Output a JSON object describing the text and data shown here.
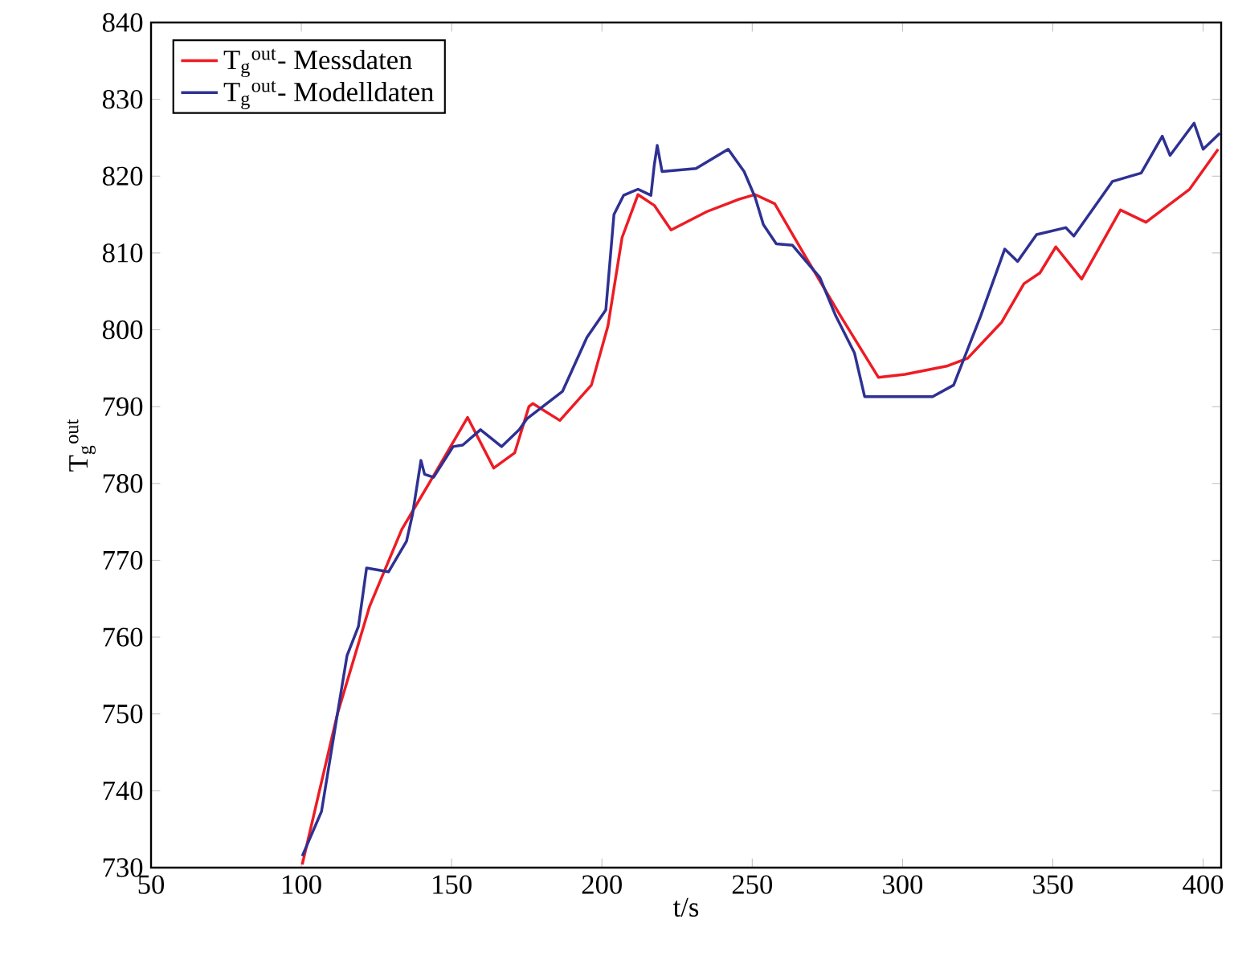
{
  "chart_data": {
    "type": "line",
    "xlabel": "t/s",
    "ylabel": "T$_{g}$$^{out}$",
    "xlim": [
      50,
      406
    ],
    "ylim": [
      730,
      840
    ],
    "xticks": [
      50,
      100,
      150,
      200,
      250,
      300,
      350,
      400
    ],
    "yticks": [
      730,
      740,
      750,
      760,
      770,
      780,
      790,
      800,
      810,
      820,
      830,
      840
    ],
    "legend": "top left",
    "grid": false,
    "marker": "none",
    "line_style": "solid",
    "series": [
      {
        "name": "T$_{g}$$^{out}$- Messdaten",
        "color": "#ed1c24",
        "x": [
          100.3,
          112,
          122.7,
          133.4,
          144,
          155.3,
          164,
          171,
          175.7,
          177,
          186,
          196.5,
          202,
          206.7,
          212,
          217.4,
          223,
          235,
          245.7,
          251,
          257.5,
          267,
          279.4,
          292,
          300.8,
          315,
          321.7,
          333,
          340.4,
          345.7,
          351,
          359.6,
          372.5,
          381,
          395.5,
          405
        ],
        "values": [
          730.4,
          750,
          764,
          774,
          781,
          788.6,
          782,
          784,
          790,
          790.4,
          788.2,
          792.8,
          800.5,
          812,
          817.6,
          816.2,
          813,
          815.4,
          817,
          817.6,
          816.4,
          810,
          801.8,
          793.8,
          794.2,
          795.3,
          796.3,
          801,
          806,
          807.4,
          810.8,
          806.6,
          815.6,
          814,
          818.3,
          823.5
        ]
      },
      {
        "name": "T$_{g}$$^{out}$- Modelldaten",
        "color": "#2e3192",
        "x": [
          100.3,
          106.7,
          112,
          115.2,
          119,
          121.7,
          129,
          135,
          137,
          139.8,
          141,
          144,
          150.5,
          153.7,
          159.6,
          166.6,
          172.5,
          175,
          186.9,
          195,
          201.3,
          204,
          207.2,
          212,
          216.3,
          217.4,
          218.4,
          220,
          231.3,
          242,
          247.3,
          251,
          253.7,
          258,
          263.4,
          272.5,
          277.8,
          284,
          287.4,
          292,
          310,
          317,
          326,
          334,
          338.3,
          344.6,
          354.3,
          357,
          369.8,
          379.4,
          386.4,
          389,
          397,
          400,
          405.6
        ],
        "values": [
          731.5,
          737.3,
          750,
          757.6,
          761.4,
          769,
          768.5,
          772.5,
          776,
          783,
          781.2,
          780.8,
          784.8,
          785,
          787,
          784.8,
          787,
          788.4,
          792,
          799,
          802.6,
          815,
          817.5,
          818.3,
          817.5,
          821.4,
          824,
          820.6,
          821,
          823.5,
          820.6,
          817.2,
          813.7,
          811.2,
          811,
          806.8,
          801.8,
          797,
          791.3,
          791.3,
          791.3,
          792.8,
          801.8,
          810.5,
          808.9,
          812.4,
          813.3,
          812.2,
          819.3,
          820.4,
          825.2,
          822.7,
          826.9,
          823.5,
          825.6
        ]
      }
    ]
  }
}
